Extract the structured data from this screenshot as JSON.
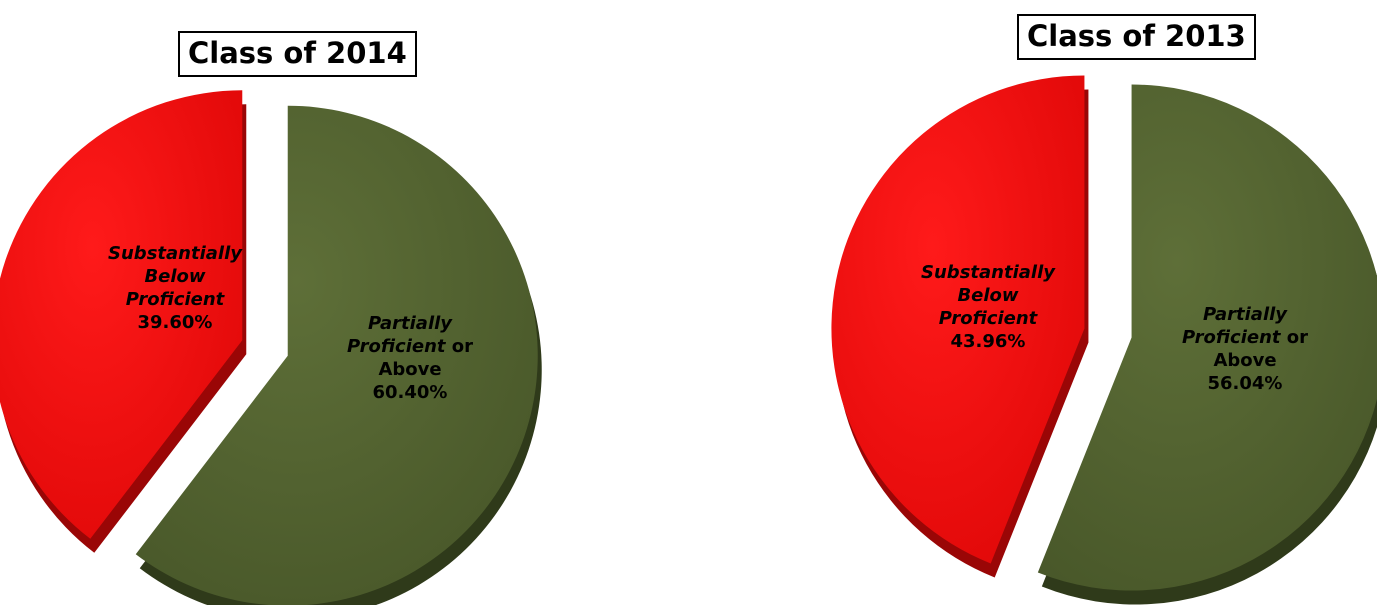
{
  "chart_data": [
    {
      "type": "pie",
      "title": "Class of 2014",
      "slices": [
        {
          "label_prefix": "Substantially Below Proficient",
          "label_suffix": "",
          "value": 39.6,
          "value_label": "39.60%",
          "color": "#f00a0a"
        },
        {
          "label_prefix": "Partially Proficient",
          "label_suffix": "or Above",
          "value": 60.4,
          "value_label": "60.40%",
          "color": "#536330"
        }
      ]
    },
    {
      "type": "pie",
      "title": "Class of 2013",
      "slices": [
        {
          "label_prefix": "Substantially Below Proficient",
          "label_suffix": "",
          "value": 43.96,
          "value_label": "43.96%",
          "color": "#f00a0a"
        },
        {
          "label_prefix": "Partially Proficient",
          "label_suffix": "or Above",
          "value": 56.04,
          "value_label": "56.04%",
          "color": "#536330"
        }
      ]
    }
  ],
  "labels": {
    "pie2014": {
      "red": {
        "line1": "Substantially",
        "line2": "Below",
        "line3": "Proficient"
      },
      "green": {
        "line1": "Partially",
        "line2_it": "Proficient",
        "line2_rest": "or",
        "line3": "Above"
      }
    },
    "pie2013": {
      "red": {
        "line1": "Substantially",
        "line2": "Below",
        "line3": "Proficient"
      },
      "green": {
        "line1": "Partially",
        "line2_it": "Proficient",
        "line2_rest": "or",
        "line3": "Above"
      }
    }
  }
}
